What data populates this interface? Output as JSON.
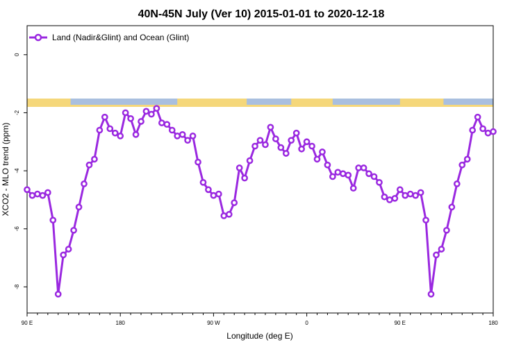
{
  "chart_data": {
    "type": "line",
    "title": "40N-45N July (Ver 10)   2015-01-01 to 2020-12-18",
    "xlabel": "Longitude (deg E)",
    "ylabel": "XCO2 - MLO trend (ppm)",
    "xlim": [
      90,
      540
    ],
    "ylim": [
      -8.9,
      1.0
    ],
    "xticks": [
      {
        "value": 90,
        "label": "90 E"
      },
      {
        "value": 180,
        "label": "180"
      },
      {
        "value": 270,
        "label": "90 W"
      },
      {
        "value": 360,
        "label": "0"
      },
      {
        "value": 450,
        "label": "90 E"
      },
      {
        "value": 540,
        "label": "180"
      }
    ],
    "yticks": [
      {
        "value": 0,
        "label": "0"
      },
      {
        "value": -2,
        "label": "-2"
      },
      {
        "value": -4,
        "label": "-4"
      },
      {
        "value": -6,
        "label": "-6"
      },
      {
        "value": -8,
        "label": "-8"
      }
    ],
    "grid": false,
    "legend_position": "top-left",
    "land_color": "#f5d77a",
    "ocean_color": "#a9bfdf",
    "series": [
      {
        "name": "Land (Nadir&Glint) and Ocean (Glint)",
        "color": "#9a28e0",
        "x": [
          90,
          95,
          100,
          105,
          110,
          115,
          120,
          125,
          130,
          135,
          140,
          145,
          150,
          155,
          160,
          165,
          170,
          175,
          180,
          185,
          190,
          195,
          200,
          205,
          210,
          215,
          220,
          225,
          230,
          235,
          240,
          245,
          250,
          255,
          260,
          265,
          270,
          275,
          280,
          285,
          290,
          295,
          300,
          305,
          310,
          315,
          320,
          325,
          330,
          335,
          340,
          345,
          350,
          355,
          360,
          365,
          370,
          375,
          380,
          385,
          390,
          395,
          400,
          405,
          410,
          415,
          420,
          425,
          430,
          435,
          440,
          445,
          450,
          455,
          460,
          465,
          470,
          475,
          480,
          485,
          490,
          495,
          500,
          505,
          510,
          515,
          520,
          525,
          530,
          535,
          540
        ],
        "y": [
          -4.65,
          -4.85,
          -4.8,
          -4.85,
          -4.75,
          -5.7,
          -8.25,
          -6.9,
          -6.7,
          -6.05,
          -5.25,
          -4.45,
          -3.8,
          -3.6,
          -2.6,
          -2.15,
          -2.55,
          -2.7,
          -2.8,
          -2.0,
          -2.2,
          -2.75,
          -2.3,
          -1.95,
          -2.05,
          -1.85,
          -2.35,
          -2.4,
          -2.6,
          -2.8,
          -2.75,
          -2.95,
          -2.8,
          -3.7,
          -4.4,
          -4.65,
          -4.85,
          -4.8,
          -5.55,
          -5.5,
          -5.1,
          -3.9,
          -4.25,
          -3.65,
          -3.15,
          -2.95,
          -3.1,
          -2.5,
          -2.9,
          -3.2,
          -3.4,
          -2.95,
          -2.7,
          -3.25,
          -3.0,
          -3.15,
          -3.6,
          -3.35,
          -3.8,
          -4.2,
          -4.05,
          -4.1,
          -4.15,
          -4.6,
          -3.9,
          -3.9,
          -4.1,
          -4.2,
          -4.4,
          -4.9,
          -5.0,
          -4.95,
          -4.65,
          -4.85,
          -4.8,
          -4.85,
          -4.75,
          -5.7,
          -8.25,
          -6.9,
          -6.7,
          -6.05,
          -5.25,
          -4.45,
          -3.8,
          -3.6,
          -2.6,
          -2.15,
          -2.55,
          -2.7,
          -2.65
        ]
      }
    ]
  }
}
